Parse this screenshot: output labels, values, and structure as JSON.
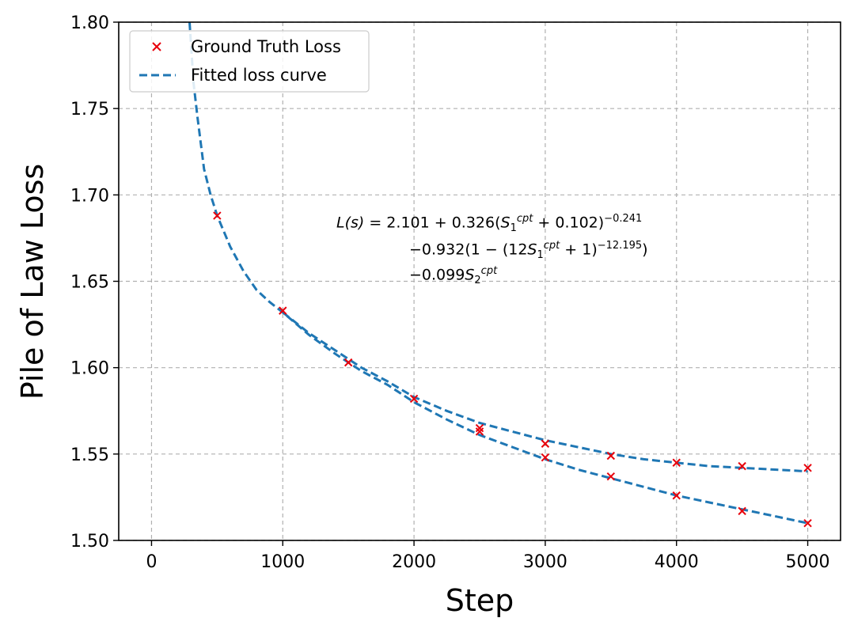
{
  "chart_data": {
    "type": "scatter",
    "xlabel": "Step",
    "ylabel": "Pile of Law Loss",
    "xlim": [
      -250,
      5250
    ],
    "ylim": [
      1.5,
      1.8
    ],
    "xticks": [
      0,
      1000,
      2000,
      3000,
      4000,
      5000
    ],
    "yticks": [
      1.5,
      1.55,
      1.6,
      1.65,
      1.7,
      1.75,
      1.8
    ],
    "xtick_labels": [
      "0",
      "1000",
      "2000",
      "3000",
      "4000",
      "5000"
    ],
    "ytick_labels": [
      "1.50",
      "1.55",
      "1.60",
      "1.65",
      "1.70",
      "1.75",
      "1.80"
    ],
    "grid": true,
    "legend_position": "top-left",
    "legend": [
      "Ground Truth Loss",
      "Fitted loss curve"
    ],
    "colors": {
      "points": "#e8000b",
      "curve": "#1f77b4",
      "grid": "#b0b0b0"
    },
    "series": [
      {
        "marker": "x",
        "x": [
          500,
          1000,
          1500,
          2000,
          2500,
          2500,
          3000,
          3000,
          3500,
          3500,
          4000,
          4000,
          4500,
          4500,
          5000,
          5000
        ],
        "y": [
          1.688,
          1.633,
          1.603,
          1.582,
          1.565,
          1.563,
          1.556,
          1.548,
          1.549,
          1.537,
          1.545,
          1.526,
          1.543,
          1.517,
          1.542,
          1.51
        ]
      },
      {
        "style": "dashed",
        "x": [
          290,
          320,
          350,
          400,
          450,
          500,
          600,
          700,
          800,
          900,
          1000,
          1200,
          1400,
          1600,
          1800,
          2000,
          2250,
          2500,
          2750,
          3000,
          3250,
          3500,
          3750,
          4000,
          4250,
          4500,
          4750,
          5000
        ],
        "y": [
          1.8,
          1.765,
          1.745,
          1.715,
          1.7,
          1.688,
          1.67,
          1.656,
          1.645,
          1.638,
          1.632,
          1.619,
          1.608,
          1.598,
          1.59,
          1.58,
          1.57,
          1.561,
          1.554,
          1.547,
          1.541,
          1.536,
          1.531,
          1.526,
          1.522,
          1.518,
          1.514,
          1.51
        ]
      },
      {
        "style": "dashed",
        "x": [
          1000,
          1200,
          1400,
          1600,
          1800,
          2000,
          2250,
          2500,
          2750,
          3000,
          3250,
          3500,
          3750,
          4000,
          4250,
          4500,
          4750,
          5000
        ],
        "y": [
          1.632,
          1.62,
          1.61,
          1.6,
          1.592,
          1.583,
          1.575,
          1.568,
          1.563,
          1.558,
          1.554,
          1.55,
          1.547,
          1.545,
          1.543,
          1.542,
          1.541,
          1.54
        ]
      }
    ],
    "formula": {
      "line1_start": "L(s)",
      "line1_mid": " = 2.101 + 0.326(",
      "s1a": "S",
      "s1a_sub": "1",
      "s1a_sup": "cpt",
      "line1_end": " + 0.102)",
      "line1_exp": "−0.241",
      "line2_a": "−0.932(1 − (12",
      "s1b": "S",
      "s1b_sub": "1",
      "s1b_sup": "cpt",
      "line2_b": " + 1)",
      "line2_exp": "−12.195",
      "line2_c": ")",
      "line3_a": "−0.099",
      "s2": "S",
      "s2_sub": "2",
      "s2_sup": "cpt"
    }
  }
}
